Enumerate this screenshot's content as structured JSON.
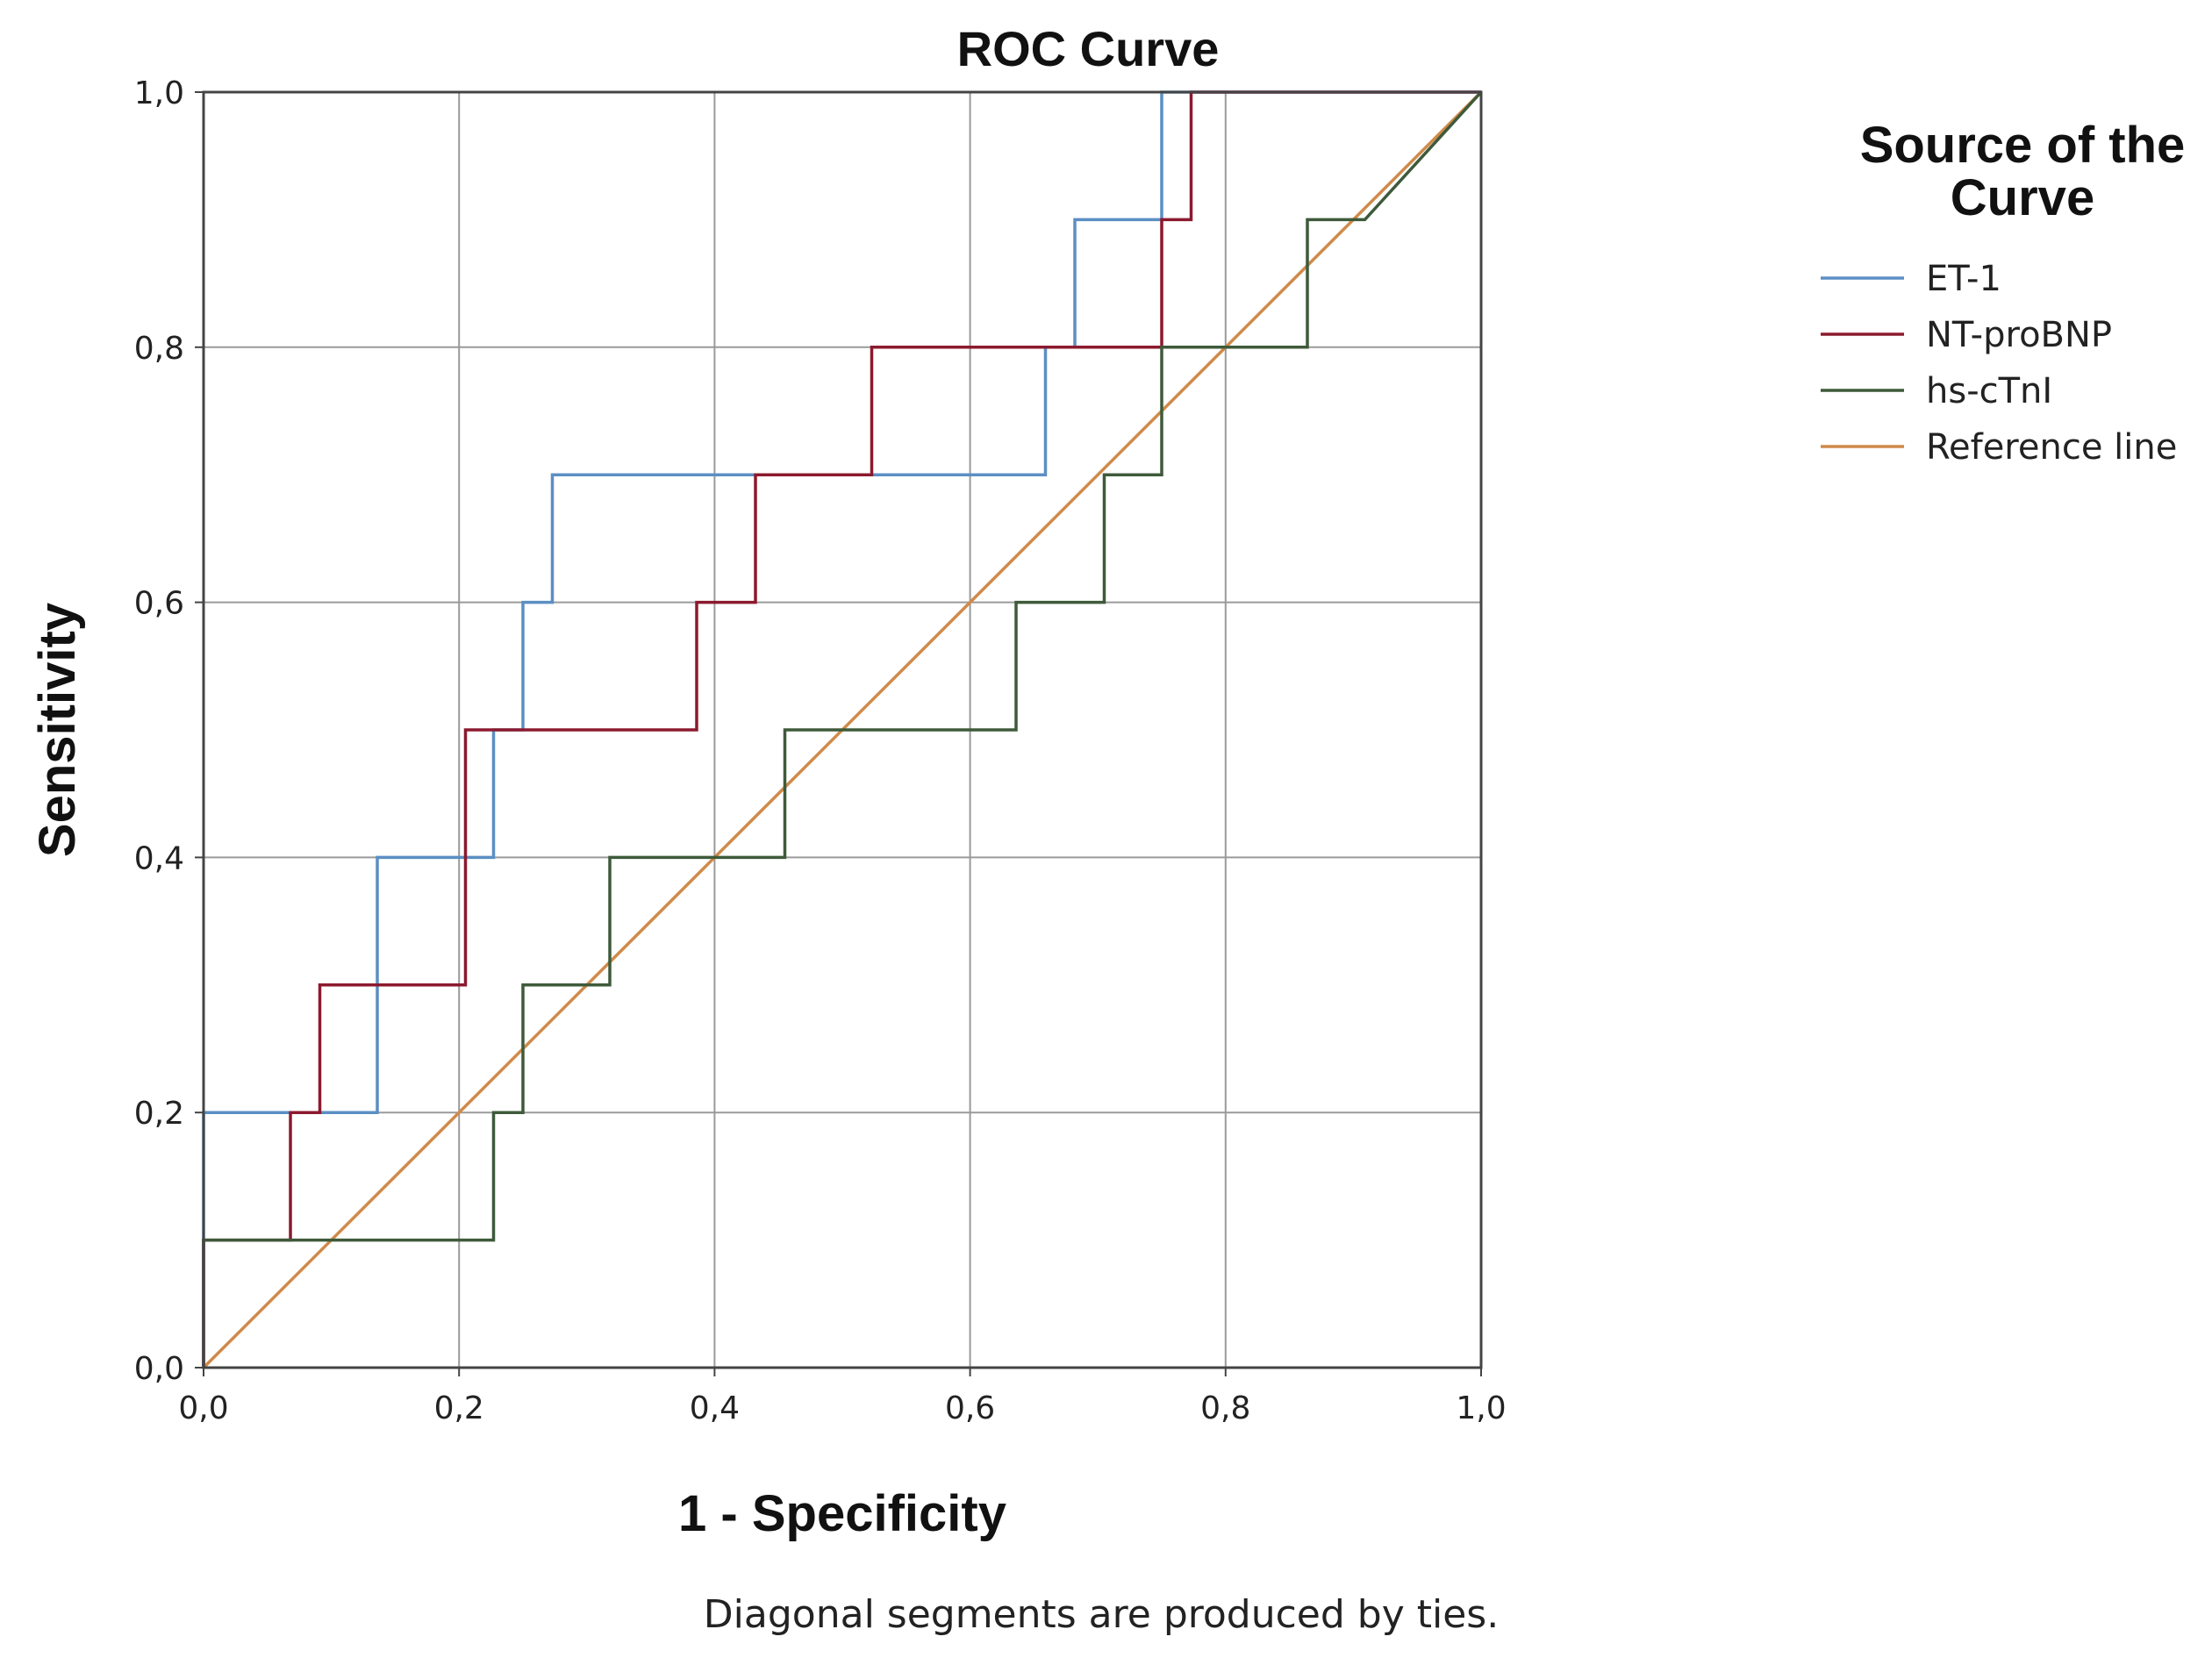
{
  "chart_data": {
    "type": "line",
    "title": "ROC Curve",
    "xlabel": "1 - Specificity",
    "ylabel": "Sensitivity",
    "xlim": [
      0,
      1
    ],
    "ylim": [
      0,
      1
    ],
    "grid": true,
    "x_ticks": [
      0,
      0.2,
      0.4,
      0.6,
      0.8,
      1.0
    ],
    "y_ticks": [
      0,
      0.2,
      0.4,
      0.6,
      0.8,
      1.0
    ],
    "x_tick_labels": [
      "0,0",
      "0,2",
      "0,4",
      "0,6",
      "0,8",
      "1,0"
    ],
    "y_tick_labels": [
      "0,0",
      "0,2",
      "0,4",
      "0,6",
      "0,8",
      "1,0"
    ],
    "legend": {
      "title_line1": "Source of the",
      "title_line2": "Curve",
      "placement": "right"
    },
    "series": [
      {
        "name": "ET-1",
        "color": "#5b8fc4",
        "x": [
          0,
          0,
          0.136,
          0.136,
          0.227,
          0.227,
          0.25,
          0.25,
          0.273,
          0.273,
          0.659,
          0.659,
          0.682,
          0.682,
          0.75,
          0.75,
          1.0
        ],
        "y": [
          0,
          0.2,
          0.2,
          0.4,
          0.4,
          0.5,
          0.5,
          0.6,
          0.6,
          0.7,
          0.7,
          0.8,
          0.8,
          0.9,
          0.9,
          1.0,
          1.0
        ]
      },
      {
        "name": "NT-proBNP",
        "color": "#8b1a2e",
        "x": [
          0,
          0,
          0.068,
          0.068,
          0.091,
          0.091,
          0.205,
          0.205,
          0.386,
          0.386,
          0.432,
          0.432,
          0.523,
          0.523,
          0.75,
          0.75,
          0.773,
          0.773,
          1.0
        ],
        "y": [
          0,
          0.1,
          0.1,
          0.2,
          0.2,
          0.3,
          0.3,
          0.5,
          0.5,
          0.6,
          0.6,
          0.7,
          0.7,
          0.8,
          0.8,
          0.9,
          0.9,
          1.0,
          1.0
        ]
      },
      {
        "name": "hs-cTnI",
        "color": "#3e5a3a",
        "x": [
          0,
          0,
          0.227,
          0.227,
          0.25,
          0.25,
          0.318,
          0.318,
          0.455,
          0.455,
          0.636,
          0.636,
          0.705,
          0.705,
          0.75,
          0.75,
          0.864,
          0.864,
          0.909,
          1.0
        ],
        "y": [
          0,
          0.1,
          0.1,
          0.2,
          0.2,
          0.3,
          0.3,
          0.4,
          0.4,
          0.5,
          0.5,
          0.6,
          0.6,
          0.7,
          0.7,
          0.8,
          0.8,
          0.9,
          0.9,
          1.0
        ]
      },
      {
        "name": "Reference line",
        "color": "#d08a4a",
        "x": [
          0,
          1
        ],
        "y": [
          0,
          1
        ]
      }
    ],
    "footnote": "Diagonal segments are produced by ties."
  }
}
